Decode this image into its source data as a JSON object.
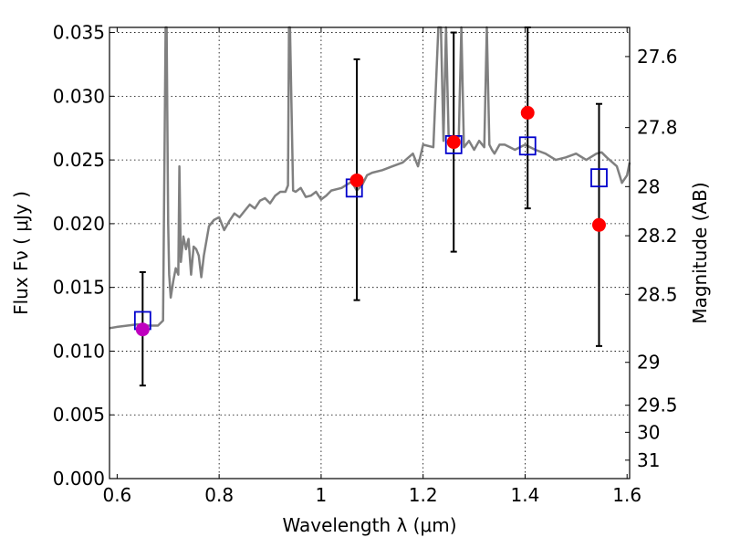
{
  "chart_data": {
    "type": "scatter",
    "title": "",
    "xlabel": "Wavelength  λ (μm)",
    "ylabel": "Flux  Fν  ( μJy )",
    "ylabel_right": "Magnitude (AB)",
    "xlim": [
      0.585,
      1.605
    ],
    "ylim": [
      0.0,
      0.0354
    ],
    "grid": true,
    "legend": "none",
    "xticks": [
      {
        "v": 0.6,
        "label": "0.6"
      },
      {
        "v": 0.8,
        "label": "0.8"
      },
      {
        "v": 1.0,
        "label": "1"
      },
      {
        "v": 1.2,
        "label": "1.2"
      },
      {
        "v": 1.4,
        "label": "1.4"
      },
      {
        "v": 1.6,
        "label": "1.6"
      }
    ],
    "yticks": [
      {
        "v": 0.0,
        "label": "0.000"
      },
      {
        "v": 0.005,
        "label": "0.005"
      },
      {
        "v": 0.01,
        "label": "0.010"
      },
      {
        "v": 0.015,
        "label": "0.015"
      },
      {
        "v": 0.02,
        "label": "0.020"
      },
      {
        "v": 0.025,
        "label": "0.025"
      },
      {
        "v": 0.03,
        "label": "0.030"
      },
      {
        "v": 0.035,
        "label": "0.035"
      }
    ],
    "yticks_right": [
      {
        "mag": 27.6,
        "label": "27.6"
      },
      {
        "mag": 27.8,
        "label": "27.8"
      },
      {
        "mag": 28.0,
        "label": "28"
      },
      {
        "mag": 28.2,
        "label": "28.2"
      },
      {
        "mag": 28.5,
        "label": "28.5"
      },
      {
        "mag": 29.0,
        "label": "29"
      },
      {
        "mag": 29.5,
        "label": "29.5"
      },
      {
        "mag": 30.0,
        "label": "30"
      },
      {
        "mag": 31.0,
        "label": "31"
      }
    ],
    "series": [
      {
        "kind": "model-spectrum",
        "color": "#808080",
        "x": [
          0.585,
          0.6,
          0.62,
          0.64,
          0.66,
          0.68,
          0.69,
          0.695,
          0.697,
          0.7,
          0.702,
          0.705,
          0.71,
          0.715,
          0.72,
          0.722,
          0.725,
          0.73,
          0.735,
          0.74,
          0.745,
          0.75,
          0.755,
          0.76,
          0.765,
          0.77,
          0.78,
          0.79,
          0.8,
          0.81,
          0.82,
          0.83,
          0.84,
          0.85,
          0.86,
          0.87,
          0.88,
          0.89,
          0.9,
          0.91,
          0.92,
          0.93,
          0.935,
          0.937,
          0.939,
          0.945,
          0.95,
          0.96,
          0.97,
          0.98,
          0.99,
          1.0,
          1.01,
          1.02,
          1.04,
          1.06,
          1.07,
          1.08,
          1.09,
          1.1,
          1.12,
          1.14,
          1.16,
          1.18,
          1.19,
          1.2,
          1.22,
          1.23,
          1.235,
          1.24,
          1.245,
          1.25,
          1.255,
          1.26,
          1.27,
          1.275,
          1.28,
          1.29,
          1.3,
          1.31,
          1.32,
          1.325,
          1.33,
          1.335,
          1.34,
          1.35,
          1.36,
          1.38,
          1.4,
          1.42,
          1.44,
          1.46,
          1.48,
          1.5,
          1.52,
          1.54,
          1.55,
          1.56,
          1.58,
          1.59,
          1.6,
          1.605
        ],
        "y": [
          0.0118,
          0.0119,
          0.012,
          0.0121,
          0.012,
          0.012,
          0.0124,
          0.0354,
          0.0354,
          0.02,
          0.016,
          0.0142,
          0.0155,
          0.0165,
          0.016,
          0.0245,
          0.017,
          0.019,
          0.018,
          0.0188,
          0.016,
          0.0182,
          0.018,
          0.0175,
          0.0158,
          0.0175,
          0.0198,
          0.0203,
          0.0205,
          0.0195,
          0.0202,
          0.0208,
          0.0205,
          0.021,
          0.0215,
          0.0212,
          0.0218,
          0.022,
          0.0216,
          0.0222,
          0.0225,
          0.0225,
          0.023,
          0.0354,
          0.0354,
          0.0226,
          0.0225,
          0.0228,
          0.0221,
          0.0222,
          0.0225,
          0.0219,
          0.0222,
          0.0226,
          0.0228,
          0.0233,
          0.0226,
          0.023,
          0.0238,
          0.024,
          0.0242,
          0.0245,
          0.0248,
          0.0255,
          0.0245,
          0.0262,
          0.026,
          0.0354,
          0.0354,
          0.0265,
          0.0354,
          0.027,
          0.0265,
          0.0266,
          0.0268,
          0.0354,
          0.026,
          0.0265,
          0.0258,
          0.0265,
          0.026,
          0.0354,
          0.0262,
          0.0258,
          0.0255,
          0.0262,
          0.0262,
          0.0258,
          0.0262,
          0.0258,
          0.0255,
          0.025,
          0.0252,
          0.0255,
          0.025,
          0.0255,
          0.0256,
          0.0252,
          0.0245,
          0.0232,
          0.0238,
          0.0248
        ]
      },
      {
        "kind": "observed-flux",
        "x": [
          0.65,
          1.07,
          1.26,
          1.405,
          1.545
        ],
        "y": [
          0.0117,
          0.0234,
          0.0264,
          0.0287,
          0.0199
        ],
        "colors": [
          "#bf00bf",
          "#ff0000",
          "#ff0000",
          "#ff0000",
          "#ff0000"
        ],
        "err_low": [
          0.0073,
          0.014,
          0.0178,
          0.0212,
          0.0104
        ],
        "err_high": [
          0.0162,
          0.0329,
          0.035,
          0.0354,
          0.0294
        ]
      },
      {
        "kind": "model-bandpass",
        "color": "#0000cc",
        "x": [
          0.65,
          1.065,
          1.26,
          1.405,
          1.545
        ],
        "y": [
          0.0124,
          0.0228,
          0.0262,
          0.0261,
          0.0236
        ]
      }
    ]
  }
}
